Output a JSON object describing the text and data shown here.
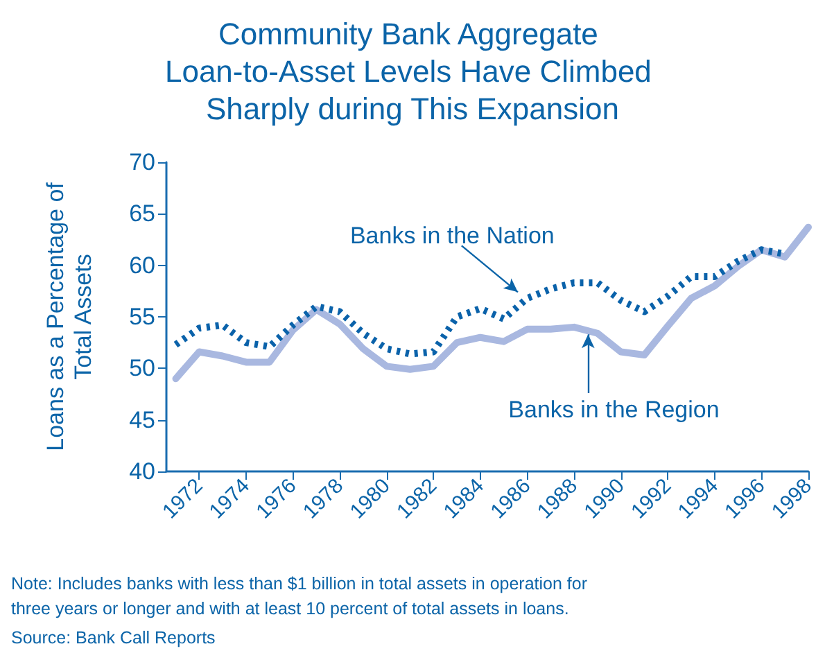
{
  "chart_data": {
    "type": "line",
    "title": "Community Bank Aggregate Loan-to-Asset Levels Have Climbed Sharply during This Expansion",
    "ylabel": "Loans as a Percentage of Total Assets",
    "x": [
      1971,
      1972,
      1973,
      1974,
      1975,
      1976,
      1977,
      1978,
      1979,
      1980,
      1981,
      1982,
      1983,
      1984,
      1985,
      1986,
      1987,
      1988,
      1989,
      1990,
      1991,
      1992,
      1993,
      1994,
      1995,
      1996,
      1997,
      1998
    ],
    "series": [
      {
        "name": "Banks in the Nation",
        "color": "#0a62aa",
        "line_style": "dotted",
        "values": [
          52.3,
          53.9,
          54.2,
          52.5,
          52.1,
          54.2,
          56.0,
          55.5,
          53.4,
          51.9,
          51.4,
          51.6,
          55.0,
          55.8,
          54.8,
          56.8,
          57.7,
          58.3,
          58.3,
          56.6,
          55.5,
          57.0,
          58.9,
          58.9,
          60.4,
          61.5,
          61.1,
          null
        ]
      },
      {
        "name": "Banks in the Region",
        "color": "#a9b8e0",
        "line_style": "solid",
        "values": [
          49.0,
          51.6,
          51.2,
          50.6,
          50.6,
          53.7,
          55.7,
          54.3,
          51.9,
          50.2,
          49.9,
          50.2,
          52.5,
          53.0,
          52.6,
          53.8,
          53.8,
          54.0,
          53.4,
          51.6,
          51.3,
          54.1,
          56.8,
          58.0,
          59.9,
          61.5,
          60.8,
          63.7
        ]
      }
    ],
    "xlim": [
      1970.6,
      1998
    ],
    "xticks": [
      1972,
      1974,
      1976,
      1978,
      1980,
      1982,
      1984,
      1986,
      1988,
      1990,
      1992,
      1994,
      1996,
      1998
    ],
    "ylim": [
      40,
      70
    ],
    "yticks": [
      40,
      45,
      50,
      55,
      60,
      65,
      70
    ],
    "marker": "none",
    "annotations": [
      "Note: Includes banks with less than $1 billion in total assets in operation for three years or longer and with at least 10 percent of total assets in loans.",
      "Source: Bank Call Reports"
    ]
  }
}
